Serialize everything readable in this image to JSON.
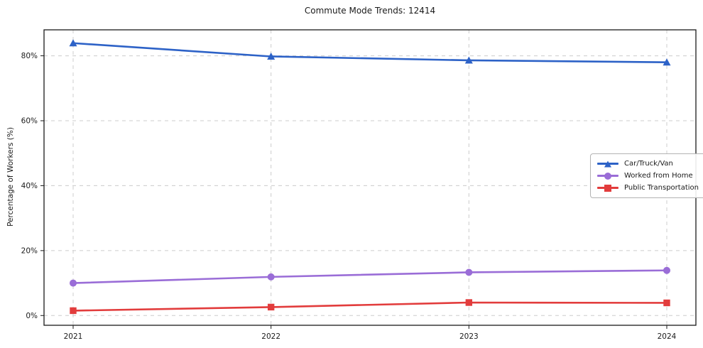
{
  "chart_data": {
    "type": "line",
    "title": "Commute Mode Trends: 12414",
    "x_labels": [
      "2021",
      "2022",
      "2023",
      "2024"
    ],
    "series": [
      {
        "name": "Car/Truck/Van",
        "values": [
          83.9,
          79.8,
          78.6,
          78.0
        ],
        "color": "#2d62c7",
        "marker": "triangle"
      },
      {
        "name": "Worked from Home",
        "values": [
          10.0,
          11.9,
          13.3,
          13.9
        ],
        "color": "#9a6dd7",
        "marker": "circle"
      },
      {
        "name": "Public Transportation",
        "values": [
          1.5,
          2.6,
          4.0,
          3.9
        ],
        "color": "#e23c3c",
        "marker": "square"
      }
    ],
    "xlabel": "",
    "ylabel": "Percentage of Workers (%)",
    "ylim": [
      -3,
      88
    ],
    "yticks": [
      0,
      20,
      40,
      60,
      80
    ],
    "ytick_labels": [
      "0%",
      "20%",
      "40%",
      "60%",
      "80%"
    ],
    "grid": true,
    "grid_style": "dashed",
    "legend_position": "center-right"
  },
  "colors": {
    "grid": "#cccccc",
    "spine": "#1a1a1a",
    "tick_text": "#1a1a1a",
    "background": "#ffffff"
  }
}
